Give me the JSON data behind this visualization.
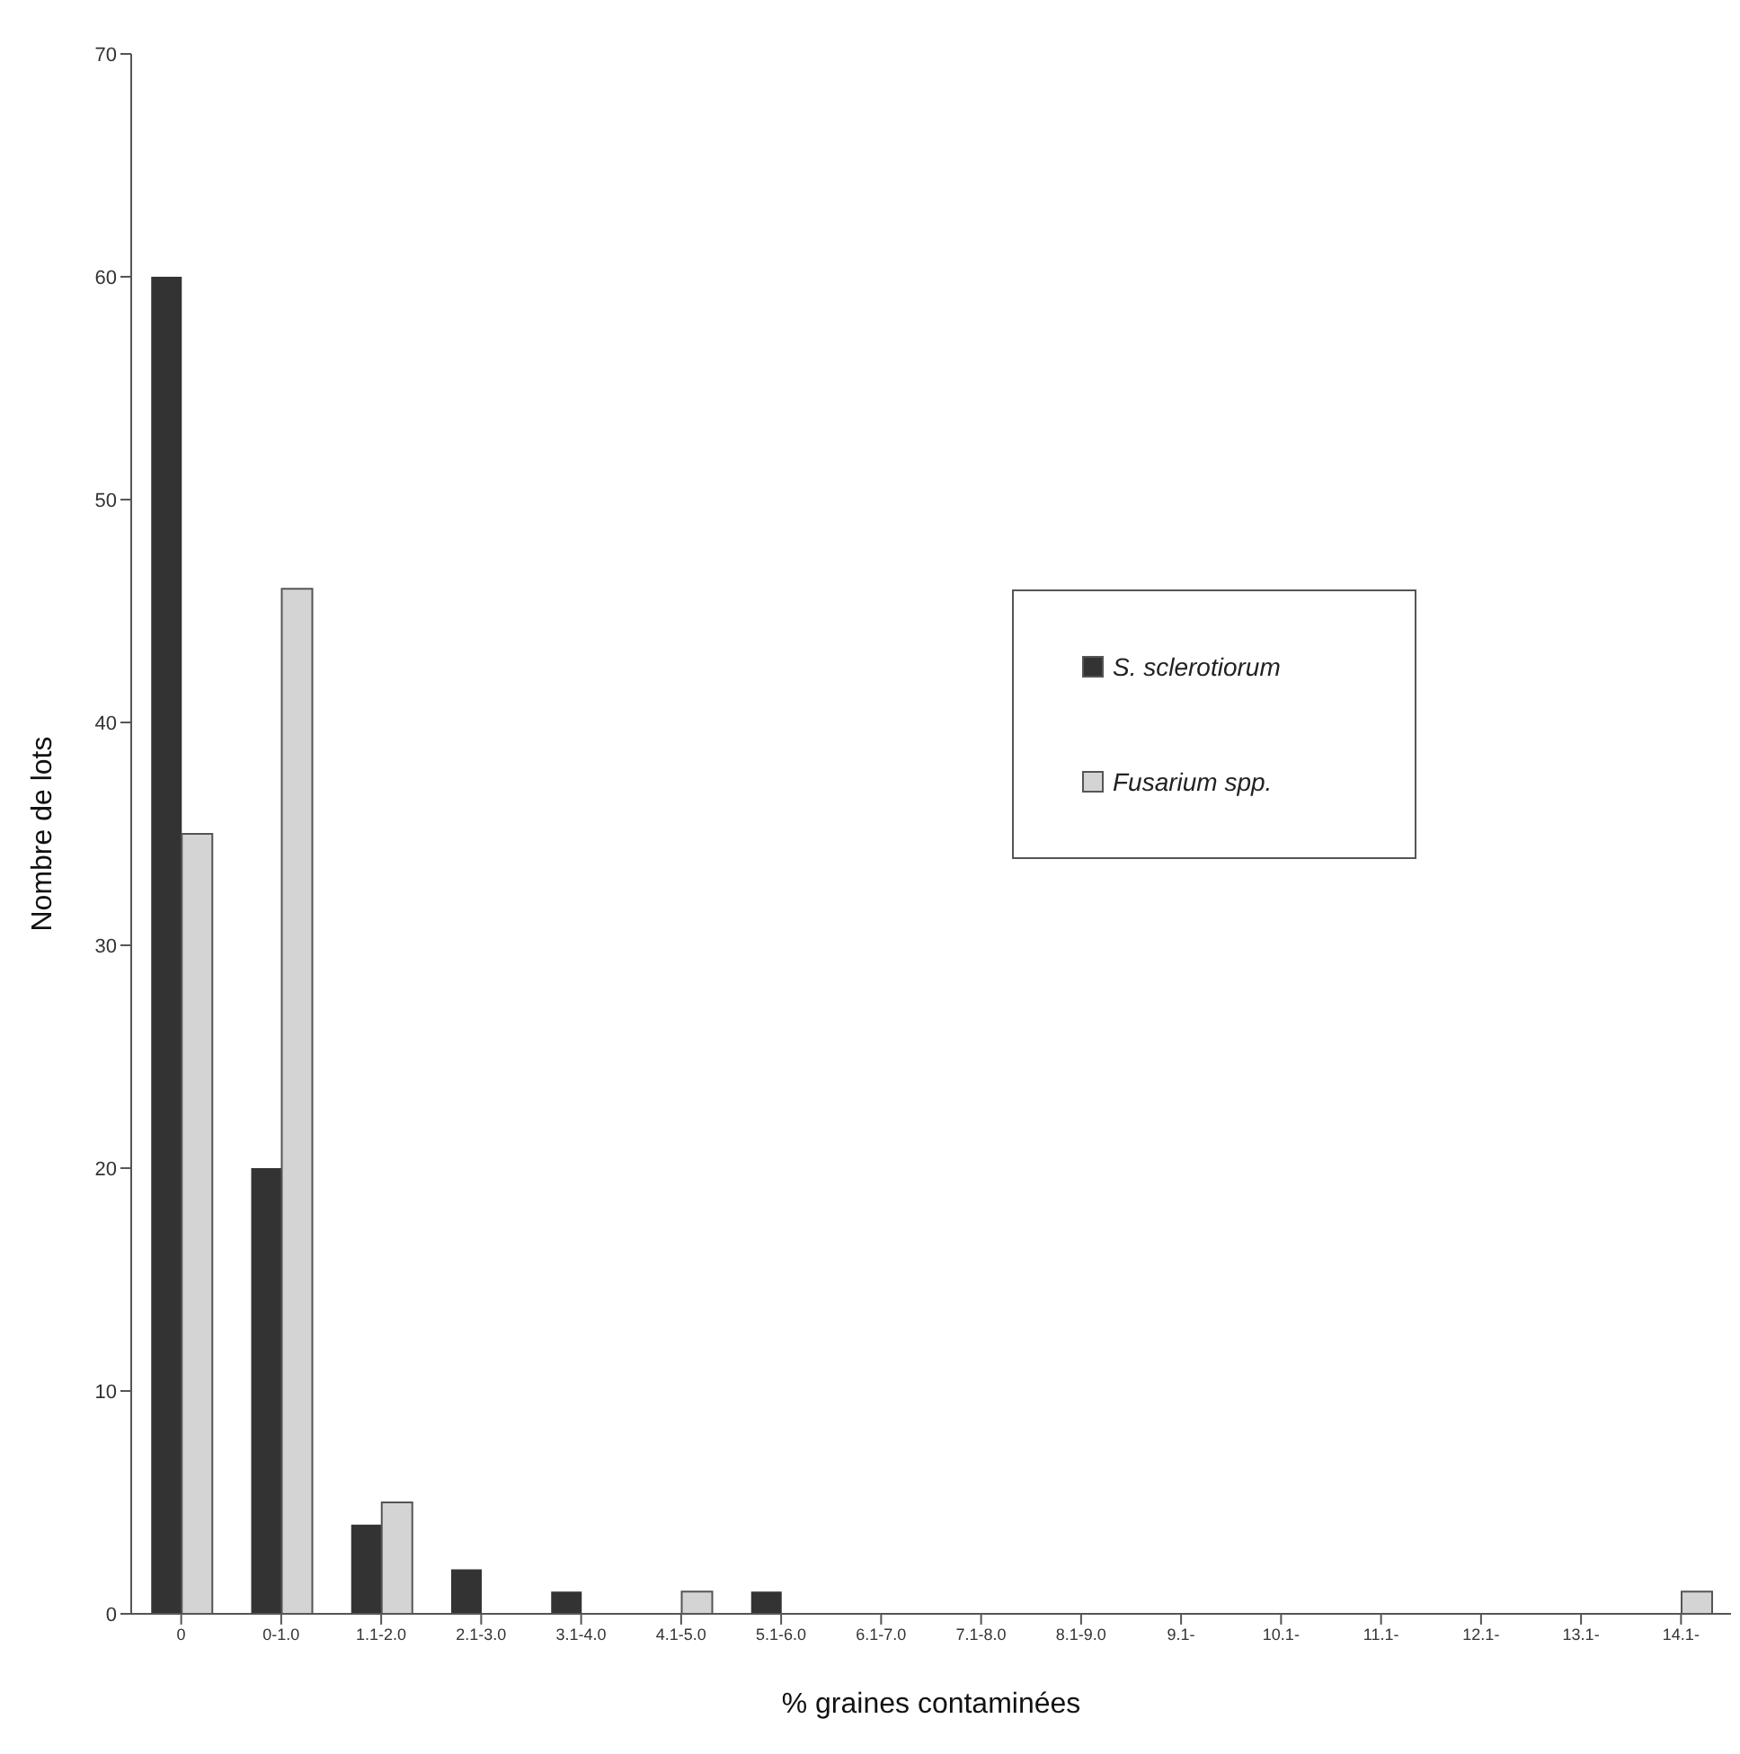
{
  "chart_data": {
    "type": "bar",
    "xlabel": "% graines contaminées",
    "ylabel": "Nombre de lots",
    "categories": [
      "0",
      "0-1.0",
      "1.1-2.0",
      "2.1-3.0",
      "3.1-4.0",
      "4.1-5.0",
      "5.1-6.0",
      "6.1-7.0",
      "7.1-8.0",
      "8.1-9.0",
      "9.1-",
      "10.1-",
      "11.1-",
      "12.1-",
      "13.1-",
      "14.1-"
    ],
    "series": [
      {
        "name": "S. sclerotiorum",
        "color": "#333333",
        "values": [
          60,
          20,
          4,
          2,
          1,
          0,
          1,
          0,
          0,
          0,
          0,
          0,
          0,
          0,
          0,
          0
        ]
      },
      {
        "name": "Fusarium spp.",
        "color": "#d4d4d4",
        "values": [
          35,
          46,
          5,
          0,
          0,
          1,
          0,
          0,
          0,
          0,
          0,
          0,
          0,
          0,
          0,
          1
        ]
      }
    ],
    "ylim": [
      0,
      70
    ],
    "yticks": [
      0,
      10,
      20,
      30,
      40,
      50,
      60,
      70
    ],
    "legend": "right"
  }
}
